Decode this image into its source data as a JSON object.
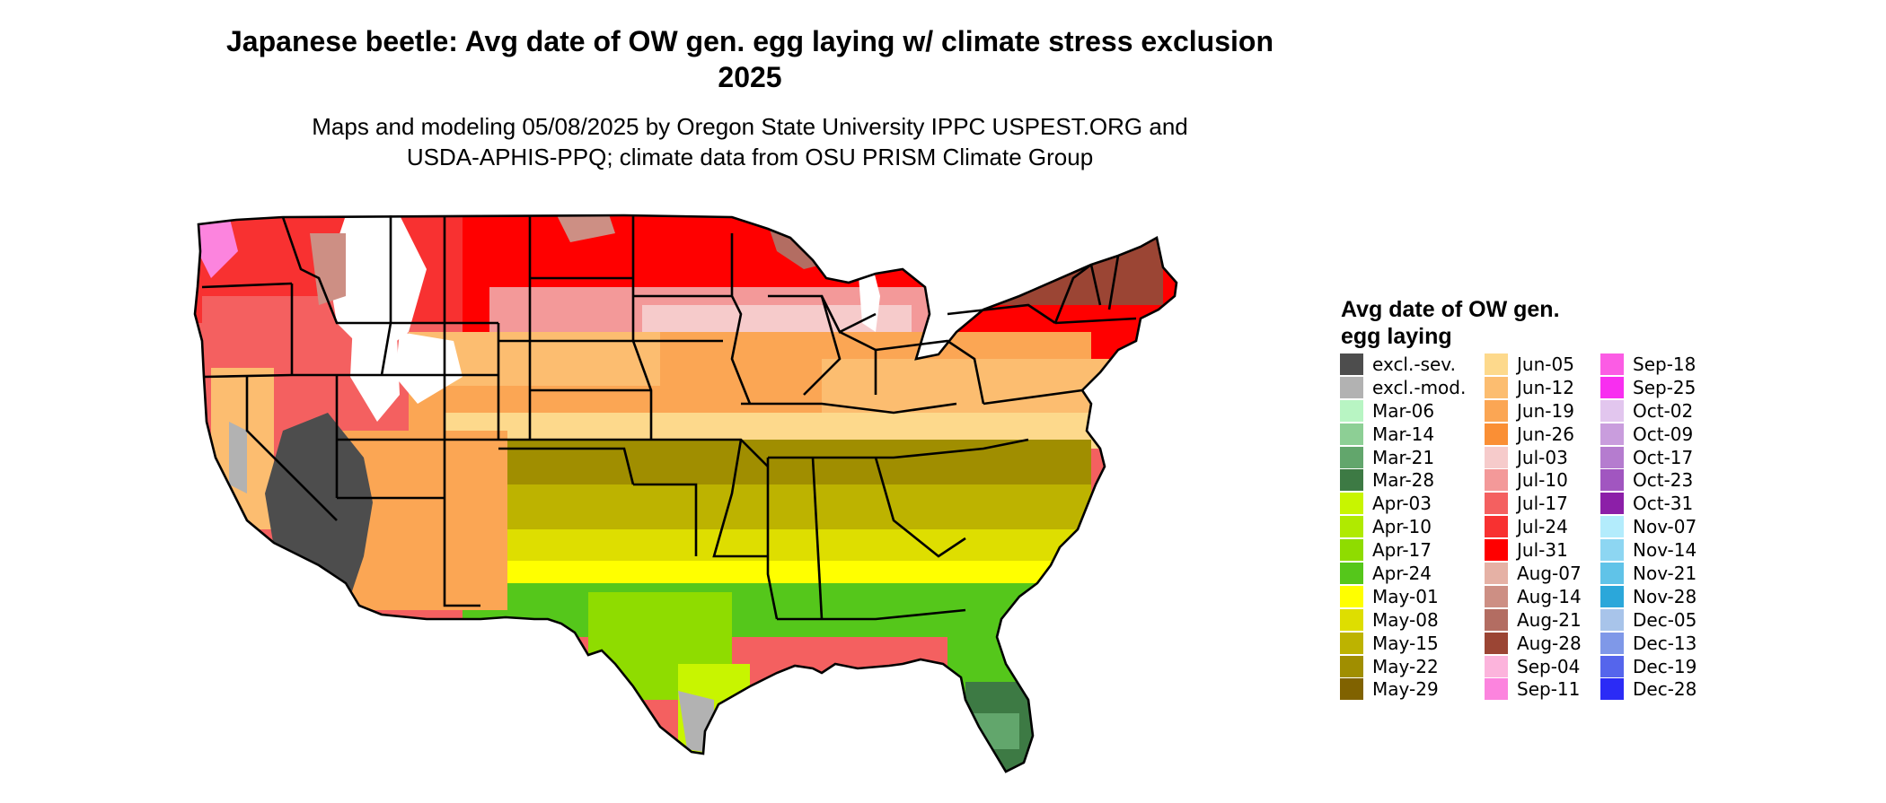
{
  "title": "Japanese beetle: Avg date of OW gen. egg laying w/ climate stress exclusion 2025",
  "subtitle_line1": "Maps and modeling 05/08/2025 by Oregon State University IPPC USPEST.ORG and",
  "subtitle_line2": "USDA-APHIS-PPQ; climate data from OSU PRISM Climate Group",
  "legend": {
    "title": "Avg date of OW gen. egg laying",
    "columns": [
      [
        {
          "label": "excl.-sev.",
          "color": "#4d4d4d"
        },
        {
          "label": "excl.-mod.",
          "color": "#b2b2b2"
        },
        {
          "label": "Mar-06",
          "color": "#b8f5c3"
        },
        {
          "label": "Mar-14",
          "color": "#8dcf95"
        },
        {
          "label": "Mar-21",
          "color": "#62a66c"
        },
        {
          "label": "Mar-28",
          "color": "#3d7a44"
        },
        {
          "label": "Apr-03",
          "color": "#c8f500"
        },
        {
          "label": "Apr-10",
          "color": "#b0ea00"
        },
        {
          "label": "Apr-17",
          "color": "#8fdc00"
        },
        {
          "label": "Apr-24",
          "color": "#55c71b"
        },
        {
          "label": "May-01",
          "color": "#ffff00"
        },
        {
          "label": "May-08",
          "color": "#dede00"
        },
        {
          "label": "May-15",
          "color": "#bdb300"
        },
        {
          "label": "May-22",
          "color": "#a08e00"
        },
        {
          "label": "May-29",
          "color": "#806200"
        }
      ],
      [
        {
          "label": "Jun-05",
          "color": "#fdd98c"
        },
        {
          "label": "Jun-12",
          "color": "#fcbd70"
        },
        {
          "label": "Jun-19",
          "color": "#fba654"
        },
        {
          "label": "Jun-26",
          "color": "#fa8f35"
        },
        {
          "label": "Jul-03",
          "color": "#f6cbcb"
        },
        {
          "label": "Jul-10",
          "color": "#f39999"
        },
        {
          "label": "Jul-17",
          "color": "#f46060"
        },
        {
          "label": "Jul-24",
          "color": "#f83131"
        },
        {
          "label": "Jul-31",
          "color": "#ff0000"
        },
        {
          "label": "Aug-07",
          "color": "#e5b1a5"
        },
        {
          "label": "Aug-14",
          "color": "#cd8f84"
        },
        {
          "label": "Aug-21",
          "color": "#b36d62"
        },
        {
          "label": "Aug-28",
          "color": "#9b4534"
        },
        {
          "label": "Sep-04",
          "color": "#fcb4dc"
        },
        {
          "label": "Sep-11",
          "color": "#fc84de"
        }
      ],
      [
        {
          "label": "Sep-18",
          "color": "#fb5ce4"
        },
        {
          "label": "Sep-25",
          "color": "#f82ef0"
        },
        {
          "label": "Oct-02",
          "color": "#e2c6ee"
        },
        {
          "label": "Oct-09",
          "color": "#c99ddd"
        },
        {
          "label": "Oct-17",
          "color": "#b57ccf"
        },
        {
          "label": "Oct-23",
          "color": "#a156c0"
        },
        {
          "label": "Oct-31",
          "color": "#8c1fa8"
        },
        {
          "label": "Nov-07",
          "color": "#b3ecfc"
        },
        {
          "label": "Nov-14",
          "color": "#8dd6f2"
        },
        {
          "label": "Nov-21",
          "color": "#60c3e8"
        },
        {
          "label": "Nov-28",
          "color": "#2ba7da"
        },
        {
          "label": "Dec-05",
          "color": "#a8c4ea"
        },
        {
          "label": "Dec-13",
          "color": "#7f98e8"
        },
        {
          "label": "Dec-19",
          "color": "#5565ec"
        },
        {
          "label": "Dec-28",
          "color": "#2b2bf6"
        }
      ]
    ]
  },
  "map": {
    "region": "Contiguous United States",
    "colors": {
      "north": "#ff0000",
      "northwest": "#f83131",
      "upper_midwest": "#f39999",
      "central": "#fba654",
      "mid_south": "#fdd98c",
      "south": "#a08e00",
      "gulf": "#bdb300",
      "coast": "#dede00",
      "florida": "#55c71b",
      "excluded_severe": "#4d4d4d",
      "excluded_moderate": "#b2b2b2",
      "high_elevation": "#ffffff",
      "mountains": "#9b4534",
      "boundary": "#000000"
    }
  }
}
